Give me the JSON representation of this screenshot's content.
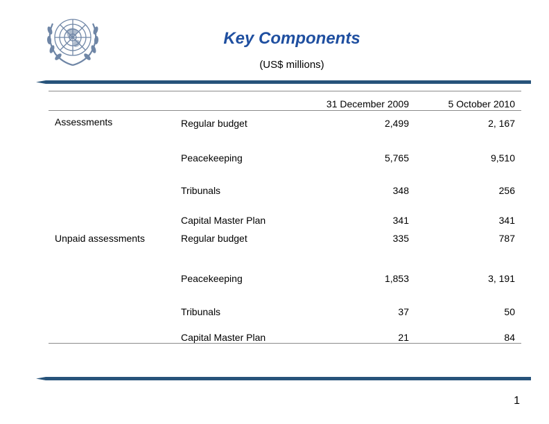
{
  "title": "Key Components",
  "subtitle": "(US$ millions)",
  "columns": [
    "31 December 2009",
    "5 October 2010"
  ],
  "groups": [
    {
      "label": "Assessments",
      "rows": [
        {
          "item": "Regular budget",
          "values": [
            "2,499",
            "2, 167"
          ]
        },
        {
          "item": "Peacekeeping",
          "values": [
            "5,765",
            "9,510"
          ]
        },
        {
          "item": "Tribunals",
          "values": [
            "348",
            "256"
          ]
        },
        {
          "item": "Capital Master Plan",
          "values": [
            "341",
            "341"
          ]
        }
      ]
    },
    {
      "label": "Unpaid assessments",
      "rows": [
        {
          "item": "Regular budget",
          "values": [
            "335",
            "787"
          ]
        },
        {
          "item": "Peacekeeping",
          "values": [
            "1,853",
            "3, 191"
          ]
        },
        {
          "item": "Tribunals",
          "values": [
            "37",
            "50"
          ]
        },
        {
          "item": "Capital Master Plan",
          "values": [
            "21",
            "84"
          ]
        }
      ]
    }
  ],
  "page_number": "1",
  "colors": {
    "title": "#1f4fa0",
    "rule": "#27537a",
    "logo": "#6f86a6"
  }
}
